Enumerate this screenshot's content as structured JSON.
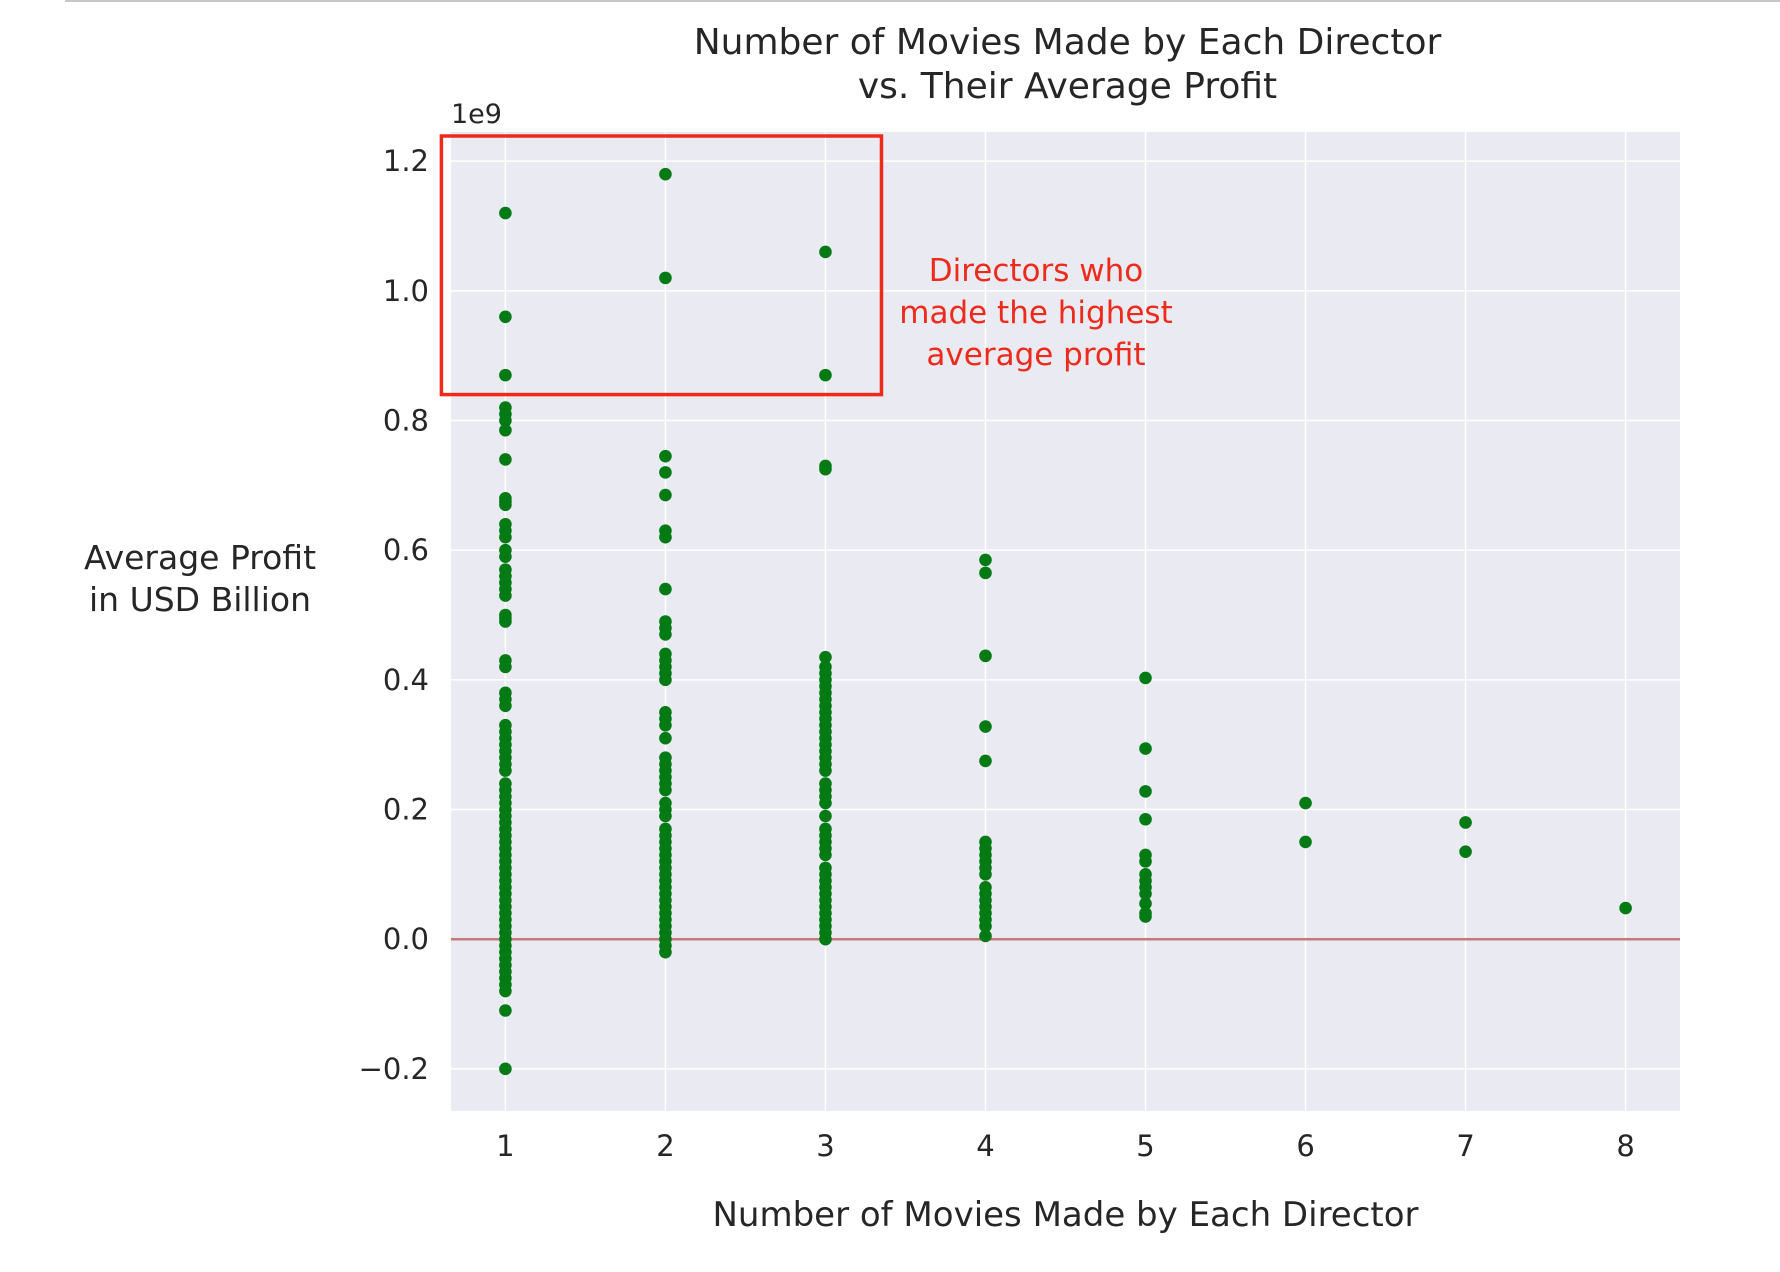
{
  "colors": {
    "plot_background": "#eaeaf2",
    "grid": "#ffffff",
    "point": "#047a14",
    "zero_line": "#c57a7a",
    "highlight": "#ee2a1b",
    "text": "#262626"
  },
  "chart_data": {
    "type": "scatter",
    "title": "Number of Movies Made by Each Director\nvs. Their Average Profit",
    "title_lines": [
      "Number of Movies Made by Each Director",
      "vs. Their Average Profit"
    ],
    "xlabel": "Number of Movies Made by Each Director",
    "ylabel": "Average Profit\nin USD Billion",
    "ylabel_lines": [
      "Average Profit",
      "in USD Billion"
    ],
    "y_offset_label": "1e9",
    "y_scale_factor": 1000000000,
    "xlim": [
      0.66,
      8.34
    ],
    "ylim": [
      -0.265,
      1.245
    ],
    "xticks": [
      1,
      2,
      3,
      4,
      5,
      6,
      7,
      8
    ],
    "xtick_labels": [
      "1",
      "2",
      "3",
      "4",
      "5",
      "6",
      "7",
      "8"
    ],
    "yticks": [
      -0.2,
      0.0,
      0.2,
      0.4,
      0.6,
      0.8,
      1.0,
      1.2
    ],
    "ytick_labels": [
      "−0.2",
      "0.0",
      "0.2",
      "0.4",
      "0.6",
      "0.8",
      "1.0",
      "1.2"
    ],
    "grid": true,
    "reference_line_y": 0.0,
    "highlight_region": {
      "x": [
        0.6,
        3.35
      ],
      "y": [
        0.84,
        1.245
      ]
    },
    "annotation_lines": [
      "Directors who",
      "made the highest",
      "average profit"
    ],
    "series": [
      {
        "x": 1,
        "y": [
          1.12,
          0.96,
          0.87,
          0.82,
          0.81,
          0.8,
          0.785,
          0.74,
          0.68,
          0.675,
          0.67,
          0.64,
          0.63,
          0.62,
          0.6,
          0.59,
          0.57,
          0.56,
          0.55,
          0.54,
          0.53,
          0.5,
          0.495,
          0.49,
          0.43,
          0.42,
          0.38,
          0.37,
          0.36,
          0.33,
          0.32,
          0.31,
          0.3,
          0.29,
          0.28,
          0.27,
          0.26,
          0.24,
          0.23,
          0.22,
          0.21,
          0.2,
          0.19,
          0.18,
          0.17,
          0.16,
          0.15,
          0.14,
          0.13,
          0.12,
          0.11,
          0.1,
          0.09,
          0.08,
          0.07,
          0.06,
          0.05,
          0.04,
          0.03,
          0.02,
          0.01,
          0.0,
          -0.01,
          -0.02,
          -0.03,
          -0.04,
          -0.05,
          -0.06,
          -0.07,
          -0.08,
          -0.11,
          -0.2
        ]
      },
      {
        "x": 2,
        "y": [
          1.18,
          1.02,
          0.745,
          0.72,
          0.685,
          0.63,
          0.62,
          0.54,
          0.49,
          0.48,
          0.47,
          0.44,
          0.43,
          0.42,
          0.41,
          0.4,
          0.35,
          0.34,
          0.33,
          0.31,
          0.28,
          0.27,
          0.26,
          0.25,
          0.24,
          0.23,
          0.21,
          0.2,
          0.19,
          0.17,
          0.16,
          0.15,
          0.14,
          0.13,
          0.12,
          0.11,
          0.1,
          0.09,
          0.08,
          0.07,
          0.06,
          0.05,
          0.04,
          0.03,
          0.02,
          0.01,
          0.0,
          -0.01,
          -0.02
        ]
      },
      {
        "x": 3,
        "y": [
          1.06,
          0.87,
          0.73,
          0.725,
          0.435,
          0.42,
          0.41,
          0.4,
          0.39,
          0.38,
          0.37,
          0.36,
          0.35,
          0.34,
          0.33,
          0.32,
          0.31,
          0.3,
          0.29,
          0.28,
          0.27,
          0.26,
          0.24,
          0.23,
          0.22,
          0.21,
          0.19,
          0.17,
          0.16,
          0.15,
          0.14,
          0.13,
          0.11,
          0.1,
          0.09,
          0.08,
          0.07,
          0.06,
          0.05,
          0.04,
          0.03,
          0.02,
          0.01,
          0.0
        ]
      },
      {
        "x": 4,
        "y": [
          0.585,
          0.565,
          0.437,
          0.328,
          0.275,
          0.15,
          0.14,
          0.13,
          0.12,
          0.11,
          0.1,
          0.08,
          0.07,
          0.06,
          0.05,
          0.04,
          0.03,
          0.02,
          0.005
        ]
      },
      {
        "x": 5,
        "y": [
          0.403,
          0.294,
          0.228,
          0.185,
          0.13,
          0.12,
          0.1,
          0.09,
          0.08,
          0.07,
          0.055,
          0.04,
          0.035
        ]
      },
      {
        "x": 6,
        "y": [
          0.21,
          0.15
        ]
      },
      {
        "x": 7,
        "y": [
          0.18,
          0.135
        ]
      },
      {
        "x": 8,
        "y": [
          0.048
        ]
      }
    ]
  }
}
